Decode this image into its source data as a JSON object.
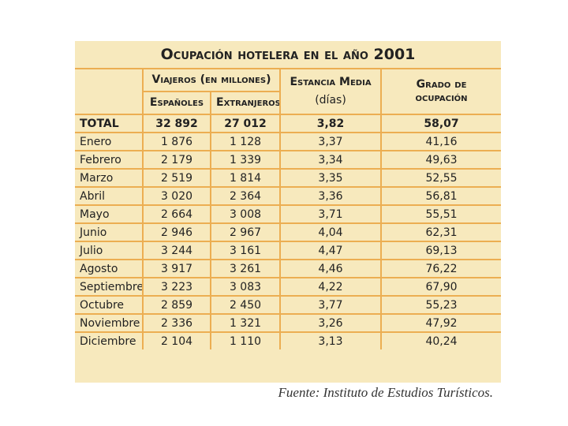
{
  "title": "Ocupación hotelera en el año 2001",
  "header": {
    "viajeros": "Viajeros (en millones)",
    "espanoles": "Españoles",
    "extranjeros": "Extranjeros",
    "estancia": "Estancia Media",
    "estancia_unit": "(días)",
    "grado": "Grado de ocupación"
  },
  "table": {
    "rows": [
      [
        "TOTAL",
        "32 892",
        "27 012",
        "3,82",
        "58,07"
      ],
      [
        "Enero",
        "1 876",
        "1 128",
        "3,37",
        "41,16"
      ],
      [
        "Febrero",
        "2 179",
        "1 339",
        "3,34",
        "49,63"
      ],
      [
        "Marzo",
        "2 519",
        "1 814",
        "3,35",
        "52,55"
      ],
      [
        "Abril",
        "3 020",
        "2 364",
        "3,36",
        "56,81"
      ],
      [
        "Mayo",
        "2 664",
        "3 008",
        "3,71",
        "55,51"
      ],
      [
        "Junio",
        "2 946",
        "2 967",
        "4,04",
        "62,31"
      ],
      [
        "Julio",
        "3 244",
        "3 161",
        "4,47",
        "69,13"
      ],
      [
        "Agosto",
        "3 917",
        "3 261",
        "4,46",
        "76,22"
      ],
      [
        "Septiembre",
        "3 223",
        "3 083",
        "4,22",
        "67,90"
      ],
      [
        "Octubre",
        "2 859",
        "2 450",
        "3,77",
        "55,23"
      ],
      [
        "Noviembre",
        "2 336",
        "1 321",
        "3,26",
        "47,92"
      ],
      [
        "Diciembre",
        "2 104",
        "1 110",
        "3,13",
        "40,24"
      ]
    ]
  },
  "source": "Fuente: Instituto de Estudios Turísticos."
}
